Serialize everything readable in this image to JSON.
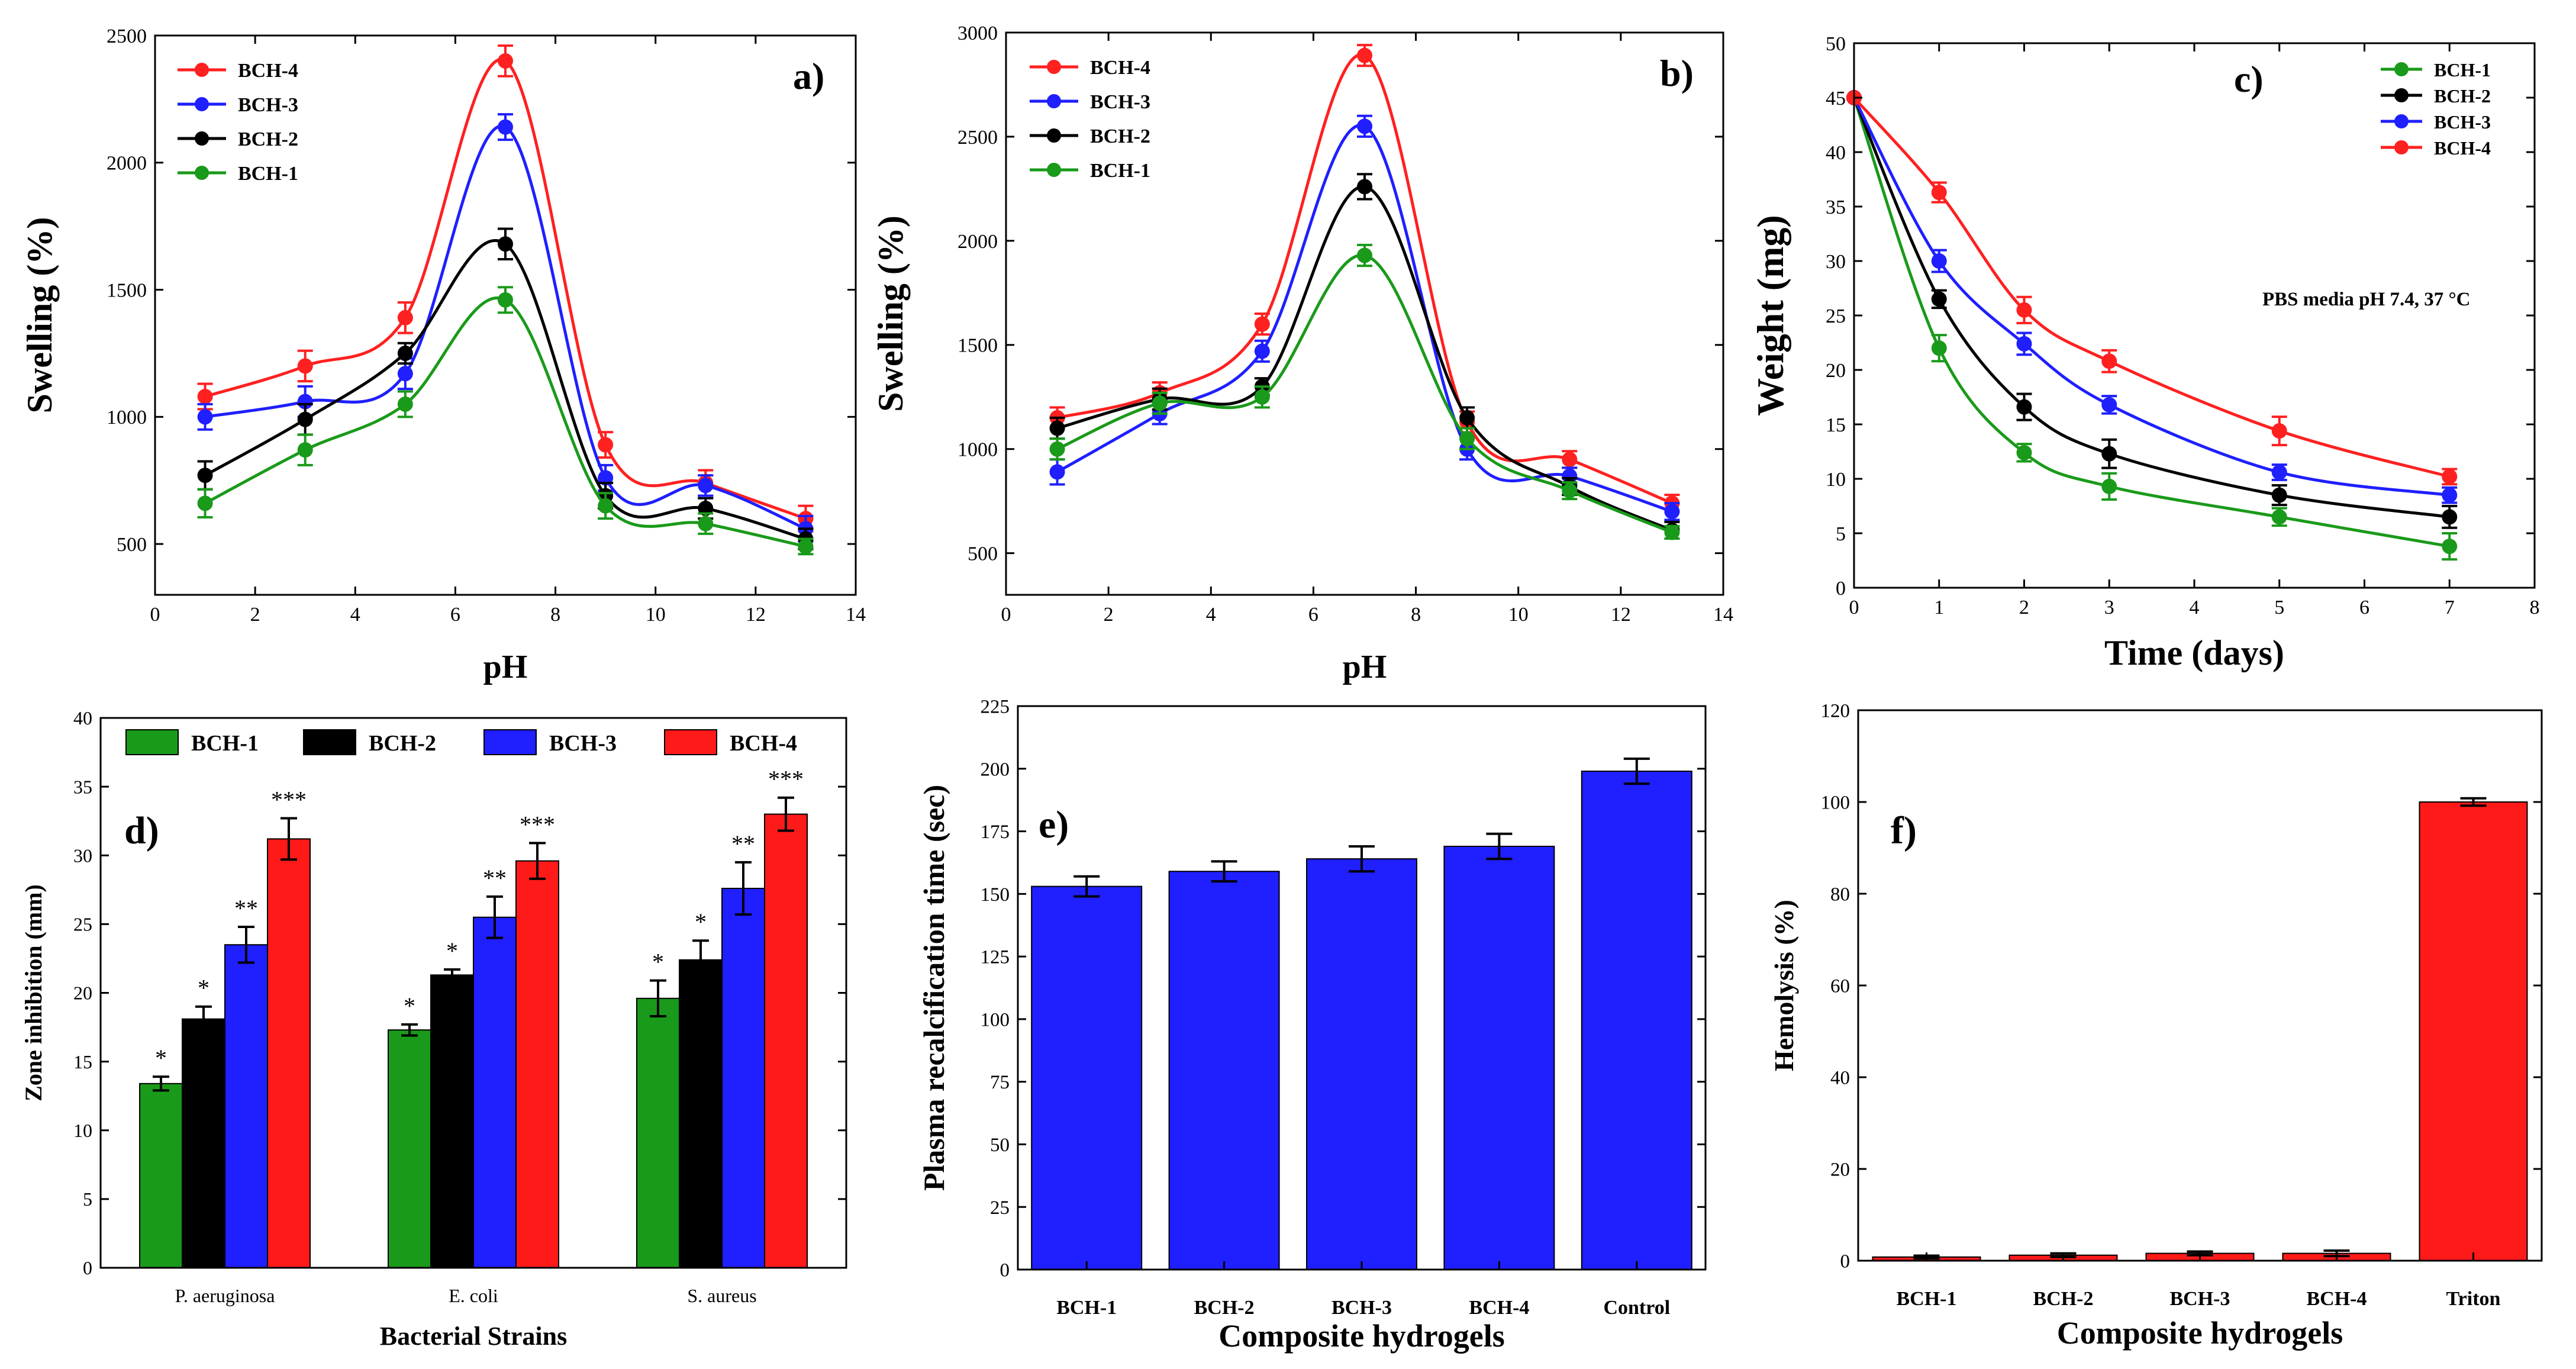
{
  "figure": "Six-panel figure of BCH composite hydrogels",
  "chart_data": [
    {
      "type": "line",
      "panel_label": "a)",
      "title": "",
      "xlabel": "pH",
      "ylabel": "Swelling (%)",
      "xlim": [
        0,
        14
      ],
      "ylim": [
        300,
        2500
      ],
      "xticks": [
        0,
        2,
        4,
        6,
        8,
        10,
        12,
        14
      ],
      "yticks": [
        500,
        1000,
        1500,
        2000,
        2500
      ],
      "x": [
        1,
        3,
        5,
        7,
        9,
        11,
        13
      ],
      "legend_position": "top-left",
      "series": [
        {
          "name": "BCH-4",
          "color": "#ff2020",
          "values": [
            1080,
            1200,
            1390,
            2400,
            890,
            740,
            600
          ],
          "errors": [
            50,
            60,
            60,
            60,
            50,
            50,
            50
          ]
        },
        {
          "name": "BCH-3",
          "color": "#1f1fff",
          "values": [
            1000,
            1060,
            1170,
            2140,
            760,
            730,
            560
          ],
          "errors": [
            50,
            60,
            60,
            50,
            50,
            40,
            50
          ]
        },
        {
          "name": "BCH-2",
          "color": "#000000",
          "values": [
            770,
            990,
            1250,
            1680,
            690,
            640,
            520
          ],
          "errors": [
            55,
            60,
            40,
            60,
            50,
            40,
            40
          ]
        },
        {
          "name": "BCH-1",
          "color": "#1a9a1a",
          "values": [
            660,
            870,
            1050,
            1460,
            650,
            580,
            490
          ],
          "errors": [
            55,
            60,
            50,
            50,
            50,
            40,
            30
          ]
        }
      ]
    },
    {
      "type": "line",
      "panel_label": "b)",
      "title": "",
      "xlabel": "pH",
      "ylabel": "Swelling (%)",
      "xlim": [
        0,
        14
      ],
      "ylim": [
        300,
        3000
      ],
      "xticks": [
        0,
        2,
        4,
        6,
        8,
        10,
        12,
        14
      ],
      "yticks": [
        500,
        1000,
        1500,
        2000,
        2500,
        3000
      ],
      "x": [
        1,
        3,
        5,
        7,
        9,
        11,
        13
      ],
      "legend_position": "top-left",
      "series": [
        {
          "name": "BCH-4",
          "color": "#ff2020",
          "values": [
            1150,
            1270,
            1600,
            2890,
            1130,
            950,
            740
          ],
          "errors": [
            50,
            50,
            50,
            50,
            50,
            40,
            40
          ]
        },
        {
          "name": "BCH-3",
          "color": "#1f1fff",
          "values": [
            890,
            1170,
            1470,
            2550,
            1000,
            870,
            700
          ],
          "errors": [
            60,
            50,
            50,
            50,
            50,
            40,
            40
          ]
        },
        {
          "name": "BCH-2",
          "color": "#000000",
          "values": [
            1100,
            1240,
            1300,
            2260,
            1150,
            820,
            610
          ],
          "errors": [
            50,
            50,
            40,
            60,
            50,
            40,
            40
          ]
        },
        {
          "name": "BCH-1",
          "color": "#1a9a1a",
          "values": [
            1000,
            1220,
            1250,
            1930,
            1050,
            800,
            600
          ],
          "errors": [
            50,
            50,
            50,
            50,
            50,
            40,
            30
          ]
        }
      ]
    },
    {
      "type": "line",
      "panel_label": "c)",
      "title": "",
      "xlabel": "Time (days)",
      "ylabel": "Weight (mg)",
      "xlim": [
        0,
        8
      ],
      "ylim": [
        0,
        50
      ],
      "xticks": [
        0,
        1,
        2,
        3,
        4,
        5,
        6,
        7,
        8
      ],
      "yticks": [
        0,
        5,
        10,
        15,
        20,
        25,
        30,
        35,
        40,
        45,
        50
      ],
      "x": [
        0,
        1,
        2,
        3,
        5,
        7
      ],
      "annotation": "PBS media pH 7.4, 37 °C",
      "legend_position": "top-right",
      "series": [
        {
          "name": "BCH-1",
          "color": "#1a9a1a",
          "values": [
            45,
            22,
            12.4,
            9.3,
            6.5,
            3.8
          ],
          "errors": [
            0,
            1.2,
            0.8,
            1.2,
            0.8,
            1.2
          ]
        },
        {
          "name": "BCH-2",
          "color": "#000000",
          "values": [
            45,
            26.5,
            16.6,
            12.3,
            8.5,
            6.5
          ],
          "errors": [
            0,
            0.8,
            1.2,
            1.3,
            0.9,
            1.0
          ]
        },
        {
          "name": "BCH-3",
          "color": "#1f1fff",
          "values": [
            45,
            30,
            22.4,
            16.8,
            10.6,
            8.5
          ],
          "errors": [
            0,
            1.0,
            1.0,
            0.8,
            0.7,
            0.7
          ]
        },
        {
          "name": "BCH-4",
          "color": "#ff2020",
          "values": [
            45,
            36.3,
            25.5,
            20.8,
            14.4,
            10.2
          ],
          "errors": [
            0,
            0.9,
            1.2,
            1.0,
            1.3,
            0.7
          ]
        }
      ]
    },
    {
      "type": "bar",
      "panel_label": "d)",
      "title": "",
      "xlabel": "Bacterial Strains",
      "ylabel": "Zone inhibition (mm)",
      "ylim": [
        0,
        40
      ],
      "yticks": [
        0,
        5,
        10,
        15,
        20,
        25,
        30,
        35,
        40
      ],
      "categories": [
        "P. aeruginosa",
        "E. coli",
        "S. aureus"
      ],
      "legend_position": "top",
      "series": [
        {
          "name": "BCH-1",
          "color": "#1a9a1a",
          "values": [
            13.4,
            17.3,
            19.6
          ],
          "errors": [
            0.5,
            0.4,
            1.3
          ],
          "significance": [
            "*",
            "*",
            "*"
          ]
        },
        {
          "name": "BCH-2",
          "color": "#000000",
          "values": [
            18.1,
            21.3,
            22.4
          ],
          "errors": [
            0.9,
            0.4,
            1.4
          ],
          "significance": [
            "*",
            "*",
            "*"
          ]
        },
        {
          "name": "BCH-3",
          "color": "#1f1fff",
          "values": [
            23.5,
            25.5,
            27.6
          ],
          "errors": [
            1.3,
            1.5,
            1.9
          ],
          "significance": [
            "**",
            "**",
            "**"
          ]
        },
        {
          "name": "BCH-4",
          "color": "#ff1a1a",
          "values": [
            31.2,
            29.6,
            33.0
          ],
          "errors": [
            1.5,
            1.3,
            1.2
          ],
          "significance": [
            "***",
            "***",
            "***"
          ]
        }
      ]
    },
    {
      "type": "bar",
      "panel_label": "e)",
      "title": "",
      "xlabel": "Composite hydrogels",
      "ylabel": "Plasma recalcification time (sec)",
      "ylim": [
        0,
        225
      ],
      "yticks": [
        0,
        25,
        50,
        75,
        100,
        125,
        150,
        175,
        200,
        225
      ],
      "categories": [
        "BCH-1",
        "BCH-2",
        "BCH-3",
        "BCH-4",
        "Control"
      ],
      "color": "#1f1fff",
      "values": [
        153,
        159,
        164,
        169,
        199
      ],
      "errors": [
        4,
        4,
        5,
        5,
        5
      ]
    },
    {
      "type": "bar",
      "panel_label": "f)",
      "title": "",
      "xlabel": "Composite hydrogels",
      "ylabel": "Hemolysis (%)",
      "ylim": [
        0,
        120
      ],
      "yticks": [
        0,
        20,
        40,
        60,
        80,
        100,
        120
      ],
      "categories": [
        "BCH-1",
        "BCH-2",
        "BCH-3",
        "BCH-4",
        "Triton"
      ],
      "color": "#ff1a1a",
      "values": [
        0.8,
        1.2,
        1.6,
        1.6,
        100
      ],
      "errors": [
        0.3,
        0.4,
        0.4,
        0.6,
        0.8
      ]
    }
  ]
}
